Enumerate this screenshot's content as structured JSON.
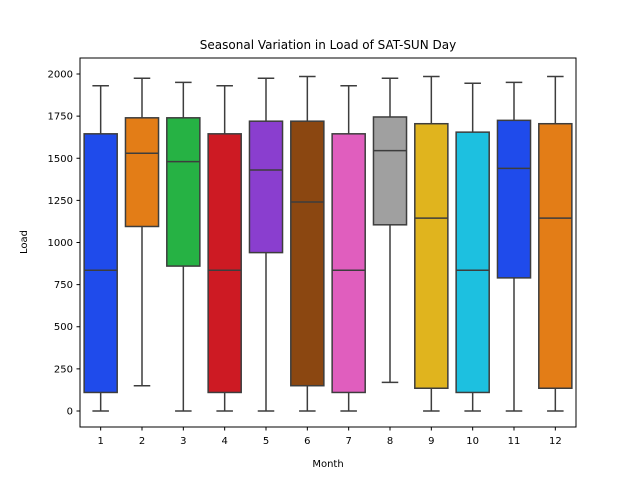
{
  "chart_data": {
    "type": "box",
    "title": "Seasonal Variation in Load of SAT-SUN Day",
    "xlabel": "Month",
    "ylabel": "Load",
    "categories": [
      "1",
      "2",
      "3",
      "4",
      "5",
      "6",
      "7",
      "8",
      "9",
      "10",
      "11",
      "12"
    ],
    "ylim": [
      -95,
      2095
    ],
    "yticks": [
      0,
      250,
      500,
      750,
      1000,
      1250,
      1500,
      1750,
      2000
    ],
    "ytick_labels": [
      "0",
      "250",
      "500",
      "750",
      "1000",
      "1250",
      "1500",
      "1750",
      "2000"
    ],
    "grid": false,
    "boxes": [
      {
        "category": "1",
        "whisker_low": 0,
        "q1": 110,
        "median": 835,
        "q3": 1645,
        "whisker_high": 1930,
        "color": "#1F4BEB"
      },
      {
        "category": "2",
        "whisker_low": 150,
        "q1": 1095,
        "median": 1530,
        "q3": 1740,
        "whisker_high": 1975,
        "color": "#E37D17"
      },
      {
        "category": "3",
        "whisker_low": 0,
        "q1": 860,
        "median": 1480,
        "q3": 1740,
        "whisker_high": 1950,
        "color": "#26B244"
      },
      {
        "category": "4",
        "whisker_low": 0,
        "q1": 110,
        "median": 835,
        "q3": 1645,
        "whisker_high": 1930,
        "color": "#CD1A23"
      },
      {
        "category": "5",
        "whisker_low": 0,
        "q1": 940,
        "median": 1430,
        "q3": 1720,
        "whisker_high": 1975,
        "color": "#8A3ECF"
      },
      {
        "category": "6",
        "whisker_low": 0,
        "q1": 150,
        "median": 1240,
        "q3": 1720,
        "whisker_high": 1985,
        "color": "#8B4711"
      },
      {
        "category": "7",
        "whisker_low": 0,
        "q1": 110,
        "median": 835,
        "q3": 1645,
        "whisker_high": 1930,
        "color": "#E05EBE"
      },
      {
        "category": "8",
        "whisker_low": 170,
        "q1": 1105,
        "median": 1545,
        "q3": 1745,
        "whisker_high": 1975,
        "color": "#A0A0A0"
      },
      {
        "category": "9",
        "whisker_low": 0,
        "q1": 135,
        "median": 1145,
        "q3": 1705,
        "whisker_high": 1985,
        "color": "#E0B41E"
      },
      {
        "category": "10",
        "whisker_low": 0,
        "q1": 110,
        "median": 835,
        "q3": 1655,
        "whisker_high": 1945,
        "color": "#1DC0E0"
      },
      {
        "category": "11",
        "whisker_low": 0,
        "q1": 790,
        "median": 1440,
        "q3": 1725,
        "whisker_high": 1950,
        "color": "#1F4BEB"
      },
      {
        "category": "12",
        "whisker_low": 0,
        "q1": 135,
        "median": 1145,
        "q3": 1705,
        "whisker_high": 1985,
        "color": "#E37D17"
      }
    ]
  }
}
